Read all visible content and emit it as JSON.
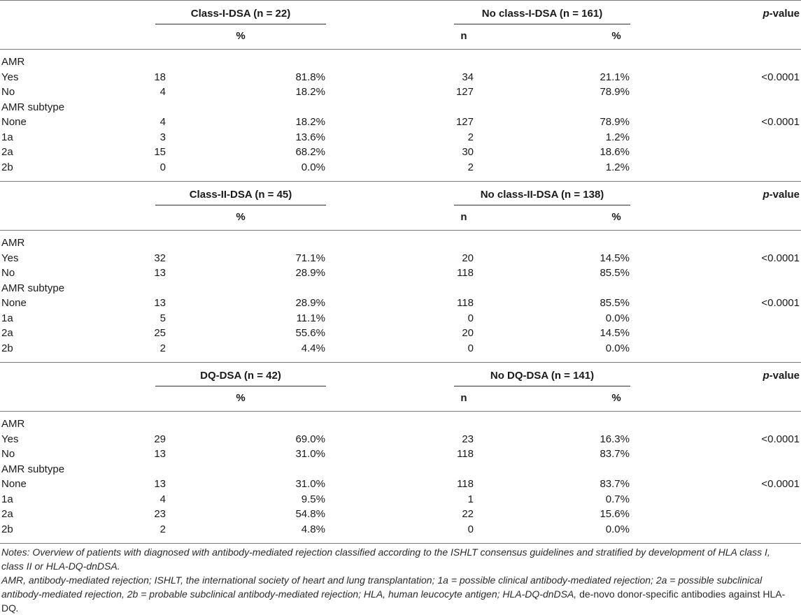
{
  "pvalue_label": "p",
  "pvalue_suffix": "-value",
  "sections": [
    {
      "group1": "Class-I-DSA (n = 22)",
      "group2": "No class-I-DSA (n = 161)",
      "sub_pct1": "%",
      "sub_n2": "n",
      "sub_pct2": "%",
      "rows": [
        {
          "label": "AMR",
          "n1": "",
          "p1": "",
          "n2": "",
          "p2": "",
          "pv": ""
        },
        {
          "label": "Yes",
          "n1": "18",
          "p1": "81.8%",
          "n2": "34",
          "p2": "21.1%",
          "pv": "<0.0001"
        },
        {
          "label": "No",
          "n1": "4",
          "p1": "18.2%",
          "n2": "127",
          "p2": "78.9%",
          "pv": ""
        },
        {
          "label": "AMR subtype",
          "n1": "",
          "p1": "",
          "n2": "",
          "p2": "",
          "pv": ""
        },
        {
          "label": "None",
          "n1": "4",
          "p1": "18.2%",
          "n2": "127",
          "p2": "78.9%",
          "pv": "<0.0001"
        },
        {
          "label": "1a",
          "n1": "3",
          "p1": "13.6%",
          "n2": "2",
          "p2": "1.2%",
          "pv": ""
        },
        {
          "label": "2a",
          "n1": "15",
          "p1": "68.2%",
          "n2": "30",
          "p2": "18.6%",
          "pv": ""
        },
        {
          "label": "2b",
          "n1": "0",
          "p1": "0.0%",
          "n2": "2",
          "p2": "1.2%",
          "pv": ""
        }
      ]
    },
    {
      "group1": "Class-II-DSA (n = 45)",
      "group2": "No class-II-DSA (n = 138)",
      "sub_pct1": "%",
      "sub_n2": "n",
      "sub_pct2": "%",
      "rows": [
        {
          "label": "AMR",
          "n1": "",
          "p1": "",
          "n2": "",
          "p2": "",
          "pv": ""
        },
        {
          "label": "Yes",
          "n1": "32",
          "p1": "71.1%",
          "n2": "20",
          "p2": "14.5%",
          "pv": "<0.0001"
        },
        {
          "label": "No",
          "n1": "13",
          "p1": "28.9%",
          "n2": "118",
          "p2": "85.5%",
          "pv": ""
        },
        {
          "label": "AMR subtype",
          "n1": "",
          "p1": "",
          "n2": "",
          "p2": "",
          "pv": ""
        },
        {
          "label": "None",
          "n1": "13",
          "p1": "28.9%",
          "n2": "118",
          "p2": "85.5%",
          "pv": "<0.0001"
        },
        {
          "label": "1a",
          "n1": "5",
          "p1": "11.1%",
          "n2": "0",
          "p2": "0.0%",
          "pv": ""
        },
        {
          "label": "2a",
          "n1": "25",
          "p1": "55.6%",
          "n2": "20",
          "p2": "14.5%",
          "pv": ""
        },
        {
          "label": "2b",
          "n1": "2",
          "p1": "4.4%",
          "n2": "0",
          "p2": "0.0%",
          "pv": ""
        }
      ]
    },
    {
      "group1": "DQ-DSA (n = 42)",
      "group2": "No DQ-DSA (n = 141)",
      "sub_pct1": "%",
      "sub_n2": "n",
      "sub_pct2": "%",
      "rows": [
        {
          "label": "AMR",
          "n1": "",
          "p1": "",
          "n2": "",
          "p2": "",
          "pv": ""
        },
        {
          "label": "Yes",
          "n1": "29",
          "p1": "69.0%",
          "n2": "23",
          "p2": "16.3%",
          "pv": "<0.0001"
        },
        {
          "label": "No",
          "n1": "13",
          "p1": "31.0%",
          "n2": "118",
          "p2": "83.7%",
          "pv": ""
        },
        {
          "label": "AMR subtype",
          "n1": "",
          "p1": "",
          "n2": "",
          "p2": "",
          "pv": ""
        },
        {
          "label": "None",
          "n1": "13",
          "p1": "31.0%",
          "n2": "118",
          "p2": "83.7%",
          "pv": "<0.0001"
        },
        {
          "label": "1a",
          "n1": "4",
          "p1": "9.5%",
          "n2": "1",
          "p2": "0.7%",
          "pv": ""
        },
        {
          "label": "2a",
          "n1": "23",
          "p1": "54.8%",
          "n2": "22",
          "p2": "15.6%",
          "pv": ""
        },
        {
          "label": "2b",
          "n1": "2",
          "p1": "4.8%",
          "n2": "0",
          "p2": "0.0%",
          "pv": ""
        }
      ]
    }
  ],
  "notes": {
    "line1": "Notes: Overview of patients with diagnosed with antibody-mediated rejection classified according to the ISHLT consensus guidelines and stratified by development of HLA class I, class II or HLA-DQ-dnDSA.",
    "line2_a": "AMR, antibody-mediated rejection; ISHLT, the international society of heart and lung transplantation; 1a = possible clinical antibody-mediated rejection; 2a = possible subclinical antibody-mediated rejection, 2b = probable subclinical antibody-mediated rejection; HLA, human leucocyte antigen; HLA-DQ-dnDSA, ",
    "line2_b": "de-novo donor-specific antibodies against HLA-DQ",
    "line2_c": "."
  }
}
